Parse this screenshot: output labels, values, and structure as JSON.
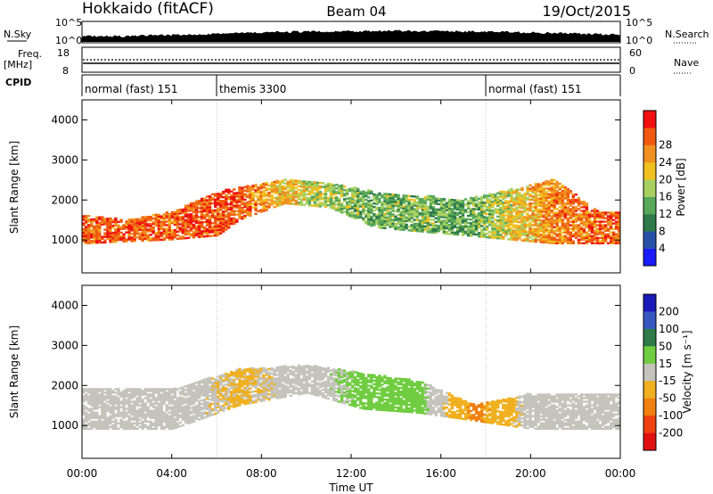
{
  "header": {
    "title_left": "Hokkaido (fitACF)",
    "title_center": "Beam 04",
    "title_right": "19/Oct/2015"
  },
  "noise_panel": {
    "label": "N.Sky",
    "right_label": "N.Search",
    "left_ticks": [
      "10^5",
      "10^0"
    ],
    "right_ticks": [
      "10^5",
      "10^0"
    ]
  },
  "freq_panel": {
    "label": "Freq.",
    "unit": "[MHz]",
    "left_ticks": [
      "18",
      "8"
    ],
    "right_ticks": [
      "60",
      "0"
    ],
    "right_label": "Nave"
  },
  "cpid_panel": {
    "label": "CPID",
    "modes": [
      {
        "label": "normal (fast) 151",
        "start_hour": 0,
        "end_hour": 6
      },
      {
        "label": "themis 3300",
        "start_hour": 6,
        "end_hour": 18
      },
      {
        "label": "normal (fast) 151",
        "start_hour": 18,
        "end_hour": 24
      }
    ]
  },
  "x_axis": {
    "label": "Time UT",
    "ticks": [
      "00:00",
      "04:00",
      "08:00",
      "12:00",
      "16:00",
      "20:00",
      "00:00"
    ]
  },
  "power_panel": {
    "ylabel": "Slant Range [km]",
    "yticks": [
      "1000",
      "2000",
      "3000",
      "4000"
    ],
    "colorbar_label": "Power [dB]",
    "colorbar_ticks": [
      "4",
      "8",
      "12",
      "16",
      "20",
      "24",
      "28"
    ],
    "colors": [
      "#1a1aff",
      "#2850a8",
      "#2f7a4a",
      "#58a85a",
      "#a8d060",
      "#f0c020",
      "#f09020",
      "#f05a10",
      "#f01010"
    ]
  },
  "velocity_panel": {
    "ylabel": "Slant Range [km]",
    "yticks": [
      "1000",
      "2000",
      "3000",
      "4000"
    ],
    "colorbar_label": "Velocity [m s⁻¹]",
    "colorbar_ticks": [
      "200",
      "100",
      "50",
      "15",
      "-15",
      "-50",
      "-100",
      "-200"
    ],
    "colors": [
      "#1a1ab8",
      "#3858c0",
      "#2e7a48",
      "#70cc40",
      "#c4c4bc",
      "#f0b020",
      "#f08010",
      "#f04010",
      "#e01010"
    ]
  },
  "chart_data": {
    "type": "heatmap",
    "x_range_hours": [
      0,
      24
    ],
    "y_range_km": [
      180,
      4500
    ],
    "series": [
      {
        "name": "Power [dB]",
        "ranges": [
          {
            "hour": 0,
            "range_km": [
              900,
              1600
            ],
            "value": 26
          },
          {
            "hour": 2,
            "range_km": [
              950,
              1500
            ],
            "value": 26
          },
          {
            "hour": 4,
            "range_km": [
              1000,
              1700
            ],
            "value": 26
          },
          {
            "hour": 6,
            "range_km": [
              1100,
              2200
            ],
            "value": 27
          },
          {
            "hour": 7,
            "range_km": [
              1500,
              2300
            ],
            "value": 26
          },
          {
            "hour": 9,
            "range_km": [
              1900,
              2500
            ],
            "value": 20
          },
          {
            "hour": 11,
            "range_km": [
              1800,
              2400
            ],
            "value": 16
          },
          {
            "hour": 13,
            "range_km": [
              1300,
              2200
            ],
            "value": 13
          },
          {
            "hour": 15,
            "range_km": [
              1200,
              2100
            ],
            "value": 14
          },
          {
            "hour": 17,
            "range_km": [
              1100,
              2000
            ],
            "value": 12
          },
          {
            "hour": 21,
            "range_km": [
              900,
              2500
            ],
            "value": 24
          },
          {
            "hour": 23,
            "range_km": [
              900,
              1700
            ],
            "value": 26
          }
        ]
      },
      {
        "name": "Velocity [m s⁻¹]",
        "ranges": [
          {
            "hour": 0,
            "range_km": [
              900,
              1900
            ],
            "value": 0
          },
          {
            "hour": 4,
            "range_km": [
              900,
              1900
            ],
            "value": 0
          },
          {
            "hour": 7,
            "range_km": [
              1500,
              2400
            ],
            "value": -20
          },
          {
            "hour": 10,
            "range_km": [
              1800,
              2500
            ],
            "value": 0
          },
          {
            "hour": 12.5,
            "range_km": [
              1400,
              2300
            ],
            "value": 25
          },
          {
            "hour": 15,
            "range_km": [
              1300,
              2100
            ],
            "value": 25
          },
          {
            "hour": 17.5,
            "range_km": [
              1100,
              1500
            ],
            "value": -60
          },
          {
            "hour": 20,
            "range_km": [
              900,
              1800
            ],
            "value": 0
          },
          {
            "hour": 23,
            "range_km": [
              900,
              1800
            ],
            "value": 0
          }
        ]
      }
    ]
  }
}
